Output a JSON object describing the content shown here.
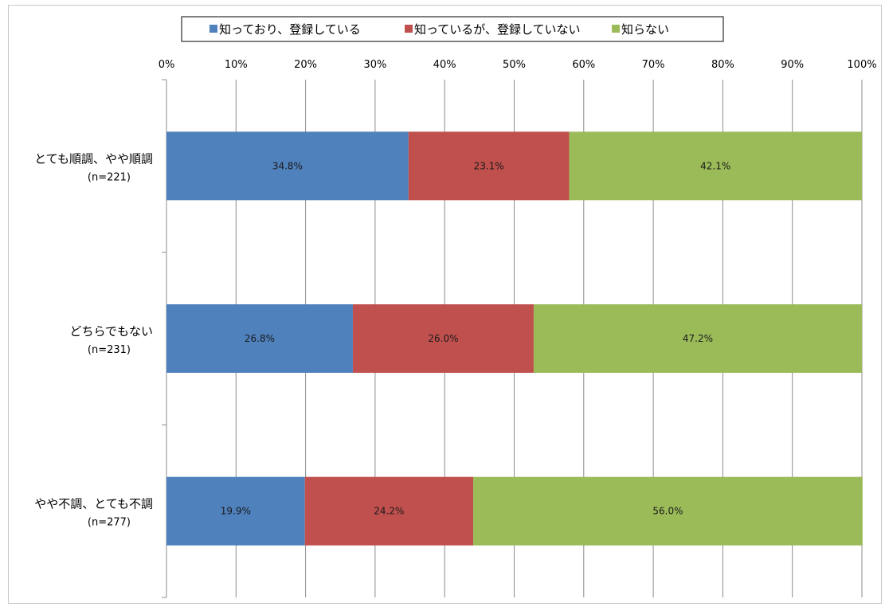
{
  "chart_data": {
    "type": "bar",
    "orientation": "horizontal",
    "stacked": "percent",
    "title": "",
    "xlabel": "",
    "ylabel": "",
    "xlim": [
      0,
      100
    ],
    "x_ticks": [
      "0%",
      "10%",
      "20%",
      "30%",
      "40%",
      "50%",
      "60%",
      "70%",
      "80%",
      "90%",
      "100%"
    ],
    "grid": true,
    "legend_position": "top",
    "categories": [
      {
        "label": "とても順調、やや順調",
        "n_label": "(n=221)"
      },
      {
        "label": "どちらでもない",
        "n_label": "(n=231)"
      },
      {
        "label": "やや不調、とても不調",
        "n_label": "(n=277)"
      }
    ],
    "series": [
      {
        "name": "知っており、登録している",
        "color": "#4f81bd",
        "values": [
          34.8,
          26.8,
          19.9
        ],
        "labels": [
          "34.8%",
          "26.8%",
          "19.9%"
        ]
      },
      {
        "name": "知っているが、登録していない",
        "color": "#c0504d",
        "values": [
          23.1,
          26.0,
          24.2
        ],
        "labels": [
          "23.1%",
          "26.0%",
          "24.2%"
        ]
      },
      {
        "name": "知らない",
        "color": "#9bbb59",
        "values": [
          42.1,
          47.2,
          56.0
        ],
        "labels": [
          "42.1%",
          "47.2%",
          "56.0%"
        ]
      }
    ]
  }
}
